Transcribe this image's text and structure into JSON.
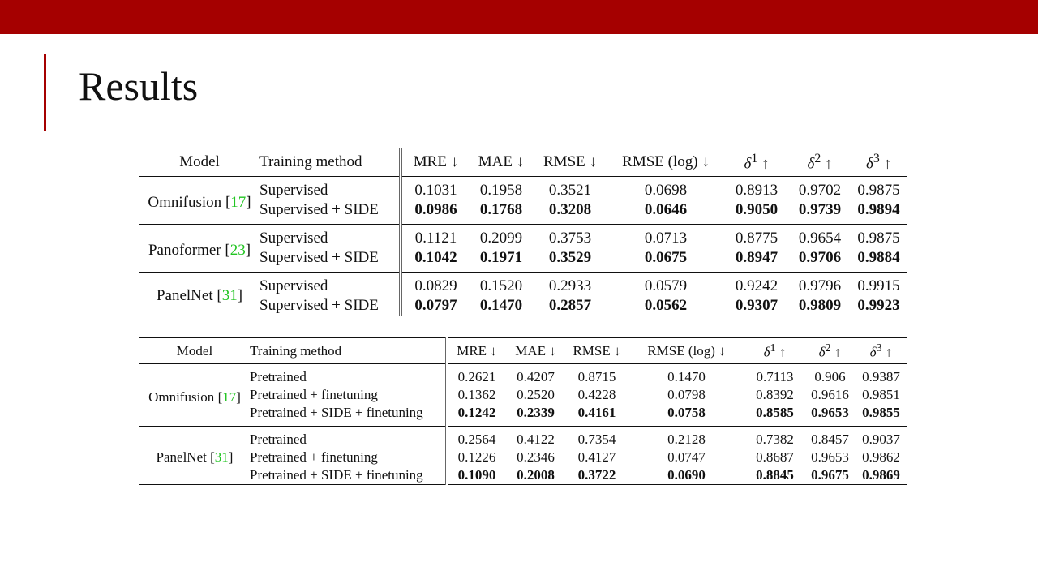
{
  "slide": {
    "title": "Results"
  },
  "table1": {
    "headers": [
      "Model",
      "Training method",
      "MRE ↓",
      "MAE ↓",
      "RMSE ↓",
      "RMSE (log) ↓",
      "δ",
      "1",
      " ↑",
      "δ",
      "2",
      " ↑",
      "δ",
      "3",
      " ↑"
    ],
    "groups": [
      {
        "model": "Omnifusion",
        "cite": "17",
        "rows": [
          {
            "method": "Supervised",
            "values": [
              "0.1031",
              "0.1958",
              "0.3521",
              "0.0698",
              "0.8913",
              "0.9702",
              "0.9875"
            ]
          },
          {
            "method": "Supervised + SIDE",
            "values": [
              "0.0986",
              "0.1768",
              "0.3208",
              "0.0646",
              "0.9050",
              "0.9739",
              "0.9894"
            ]
          }
        ]
      },
      {
        "model": "Panoformer",
        "cite": "23",
        "rows": [
          {
            "method": "Supervised",
            "values": [
              "0.1121",
              "0.2099",
              "0.3753",
              "0.0713",
              "0.8775",
              "0.9654",
              "0.9875"
            ]
          },
          {
            "method": "Supervised + SIDE",
            "values": [
              "0.1042",
              "0.1971",
              "0.3529",
              "0.0675",
              "0.8947",
              "0.9706",
              "0.9884"
            ]
          }
        ]
      },
      {
        "model": "PanelNet",
        "cite": "31",
        "rows": [
          {
            "method": "Supervised",
            "values": [
              "0.0829",
              "0.1520",
              "0.2933",
              "0.0579",
              "0.9242",
              "0.9796",
              "0.9915"
            ]
          },
          {
            "method": "Supervised + SIDE",
            "values": [
              "0.0797",
              "0.1470",
              "0.2857",
              "0.0562",
              "0.9307",
              "0.9809",
              "0.9923"
            ]
          }
        ]
      }
    ]
  },
  "table2": {
    "headers": [
      "Model",
      "Training method",
      "MRE ↓",
      "MAE ↓",
      "RMSE ↓",
      "RMSE (log) ↓",
      "δ",
      "1",
      " ↑",
      "δ",
      "2",
      " ↑",
      "δ",
      "3",
      " ↑"
    ],
    "groups": [
      {
        "model": "Omnifusion",
        "cite": "17",
        "rows": [
          {
            "method": "Pretrained",
            "values": [
              "0.2621",
              "0.4207",
              "0.8715",
              "0.1470",
              "0.7113",
              "0.906",
              "0.9387"
            ]
          },
          {
            "method": "Pretrained + finetuning",
            "values": [
              "0.1362",
              "0.2520",
              "0.4228",
              "0.0798",
              "0.8392",
              "0.9616",
              "0.9851"
            ]
          },
          {
            "method": "Pretrained + SIDE + finetuning",
            "values": [
              "0.1242",
              "0.2339",
              "0.4161",
              "0.0758",
              "0.8585",
              "0.9653",
              "0.9855"
            ]
          }
        ]
      },
      {
        "model": "PanelNet",
        "cite": "31",
        "rows": [
          {
            "method": "Pretrained",
            "values": [
              "0.2564",
              "0.4122",
              "0.7354",
              "0.2128",
              "0.7382",
              "0.8457",
              "0.9037"
            ]
          },
          {
            "method": "Pretrained + finetuning",
            "values": [
              "0.1226",
              "0.2346",
              "0.4127",
              "0.0747",
              "0.8687",
              "0.9653",
              "0.9862"
            ]
          },
          {
            "method": "Pretrained + SIDE + finetuning",
            "values": [
              "0.1090",
              "0.2008",
              "0.3722",
              "0.0690",
              "0.8845",
              "0.9675",
              "0.9869"
            ]
          }
        ]
      }
    ]
  }
}
